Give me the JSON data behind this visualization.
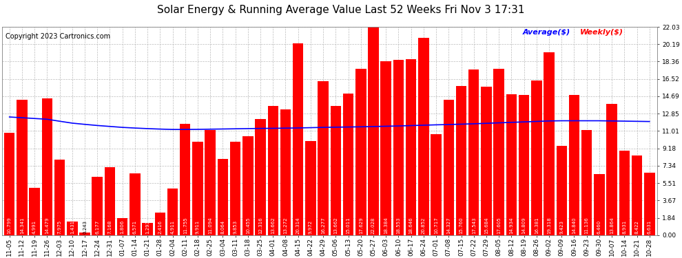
{
  "title": "Solar Energy & Running Average Value Last 52 Weeks Fri Nov 3 17:31",
  "copyright": "Copyright 2023 Cartronics.com",
  "legend_avg": "Average($)",
  "legend_weekly": "Weekly($)",
  "categories": [
    "11-05",
    "11-12",
    "11-19",
    "11-26",
    "12-03",
    "12-10",
    "12-17",
    "12-24",
    "12-31",
    "01-07",
    "01-14",
    "01-21",
    "01-28",
    "02-04",
    "02-11",
    "02-18",
    "02-25",
    "03-04",
    "03-11",
    "03-18",
    "03-25",
    "04-01",
    "04-08",
    "04-15",
    "04-22",
    "04-29",
    "05-06",
    "05-13",
    "05-20",
    "05-27",
    "06-03",
    "06-10",
    "06-17",
    "06-24",
    "07-01",
    "07-08",
    "07-15",
    "07-22",
    "07-29",
    "08-05",
    "08-12",
    "08-19",
    "08-26",
    "09-02",
    "09-09",
    "09-16",
    "09-23",
    "09-30",
    "10-07",
    "10-14",
    "10-21",
    "10-28"
  ],
  "weekly_values": [
    10.799,
    14.341,
    4.991,
    14.479,
    7.975,
    1.431,
    0.243,
    6.177,
    7.168,
    1.806,
    6.571,
    1.293,
    2.416,
    4.911,
    11.755,
    9.911,
    11.094,
    8.064,
    9.853,
    10.455,
    12.316,
    13.662,
    13.272,
    20.314,
    9.972,
    16.277,
    13.662,
    15.011,
    17.629,
    22.028,
    18.384,
    18.553,
    18.646,
    20.852,
    10.717,
    14.327,
    15.76,
    17.543,
    15.684,
    17.605,
    14.934,
    14.809,
    16.381,
    19.318,
    9.423,
    14.84,
    11.136,
    6.46,
    13.864,
    8.931,
    8.422,
    6.631
  ],
  "avg_values": [
    12.5,
    12.42,
    12.34,
    12.26,
    12.05,
    11.85,
    11.72,
    11.6,
    11.5,
    11.4,
    11.33,
    11.27,
    11.22,
    11.18,
    11.18,
    11.19,
    11.21,
    11.23,
    11.25,
    11.27,
    11.29,
    11.3,
    11.32,
    11.34,
    11.37,
    11.4,
    11.42,
    11.44,
    11.46,
    11.49,
    11.52,
    11.55,
    11.59,
    11.63,
    11.67,
    11.7,
    11.74,
    11.78,
    11.83,
    11.88,
    11.93,
    11.98,
    12.03,
    12.08,
    12.1,
    12.1,
    12.1,
    12.1,
    12.08,
    12.06,
    12.04,
    12.02
  ],
  "bar_color": "#ff0000",
  "avg_line_color": "#0000ff",
  "weekly_line_color": "#ff0000",
  "bg_color": "#ffffff",
  "grid_color": "#bbbbbb",
  "yticks": [
    0.0,
    1.84,
    3.67,
    5.51,
    7.34,
    9.18,
    11.01,
    12.85,
    14.69,
    16.52,
    18.36,
    20.19,
    22.03
  ],
  "title_fontsize": 11,
  "copyright_fontsize": 7,
  "tick_fontsize": 6.5,
  "bar_value_fontsize": 5.0,
  "legend_fontsize": 8
}
